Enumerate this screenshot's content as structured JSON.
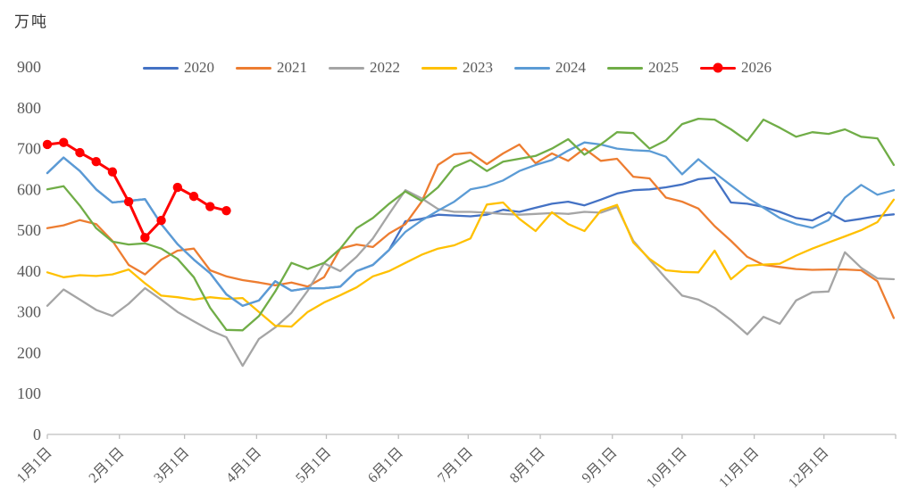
{
  "chart_data": {
    "type": "line",
    "unit_label": "万吨",
    "title": "",
    "grid": false,
    "legend_position": "top",
    "axis_color": "#bfbfbf",
    "text_color": "#595959",
    "ylim": [
      0,
      900
    ],
    "y_ticks": [
      0,
      100,
      200,
      300,
      400,
      500,
      600,
      700,
      800,
      900
    ],
    "x_tick_labels": [
      "1月1日",
      "2月1日",
      "3月1日",
      "4月1日",
      "5月1日",
      "6月1日",
      "7月1日",
      "8月1日",
      "9月1日",
      "10月1日",
      "11月1日",
      "12月1日"
    ],
    "x_tick_day_offsets": [
      0,
      31,
      59,
      90,
      120,
      151,
      181,
      212,
      243,
      273,
      304,
      334
    ],
    "points_interval_days": 7,
    "series": [
      {
        "name": "2020",
        "color": "#4472C4",
        "marker": false,
        "values": [
          640,
          678,
          645,
          600,
          568,
          572,
          576,
          515,
          466,
          428,
          395,
          343,
          315,
          328,
          375,
          352,
          358,
          358,
          362,
          400,
          415,
          452,
          522,
          528,
          538,
          536,
          534,
          538,
          550,
          545,
          555,
          565,
          570,
          561,
          575,
          590,
          598,
          600,
          605,
          612,
          625,
          629,
          568,
          565,
          557,
          545,
          530,
          524,
          544,
          522,
          528,
          535,
          539
        ]
      },
      {
        "name": "2021",
        "color": "#ED7D31",
        "marker": false,
        "values": [
          505,
          512,
          525,
          515,
          474,
          415,
          392,
          428,
          450,
          455,
          402,
          387,
          378,
          372,
          365,
          372,
          362,
          385,
          455,
          465,
          459,
          492,
          515,
          570,
          660,
          686,
          690,
          662,
          688,
          710,
          664,
          688,
          670,
          700,
          670,
          675,
          631,
          627,
          580,
          570,
          553,
          510,
          474,
          435,
          415,
          410,
          405,
          403,
          404,
          404,
          402,
          375,
          285
        ]
      },
      {
        "name": "2022",
        "color": "#A5A5A5",
        "marker": false,
        "values": [
          315,
          355,
          330,
          305,
          290,
          320,
          358,
          330,
          300,
          277,
          255,
          238,
          168,
          234,
          262,
          298,
          352,
          419,
          400,
          435,
          480,
          540,
          598,
          578,
          552,
          545,
          545,
          543,
          540,
          538,
          540,
          542,
          540,
          545,
          543,
          557,
          474,
          428,
          382,
          340,
          330,
          310,
          280,
          245,
          288,
          271,
          328,
          348,
          350,
          446,
          408,
          382,
          380
        ]
      },
      {
        "name": "2023",
        "color": "#FFC000",
        "marker": false,
        "values": [
          397,
          385,
          390,
          388,
          392,
          404,
          370,
          340,
          336,
          330,
          336,
          332,
          334,
          300,
          266,
          264,
          300,
          323,
          341,
          360,
          387,
          400,
          420,
          440,
          455,
          463,
          480,
          563,
          568,
          528,
          498,
          544,
          515,
          498,
          548,
          562,
          470,
          430,
          402,
          398,
          397,
          450,
          380,
          413,
          416,
          418,
          438,
          455,
          470,
          485,
          500,
          520,
          575
        ]
      },
      {
        "name": "2024",
        "color": "#5B9BD5",
        "marker": false,
        "values": [
          640,
          678,
          645,
          600,
          568,
          572,
          576,
          515,
          466,
          428,
          395,
          343,
          315,
          328,
          375,
          352,
          358,
          358,
          362,
          400,
          415,
          452,
          496,
          524,
          548,
          570,
          600,
          608,
          622,
          645,
          660,
          672,
          695,
          715,
          710,
          700,
          696,
          694,
          680,
          637,
          674,
          641,
          610,
          580,
          555,
          530,
          515,
          506,
          525,
          580,
          611,
          587,
          598
        ]
      },
      {
        "name": "2025",
        "color": "#70AD47",
        "marker": false,
        "values": [
          600,
          608,
          560,
          505,
          472,
          465,
          468,
          455,
          430,
          385,
          310,
          256,
          255,
          290,
          350,
          420,
          405,
          420,
          455,
          505,
          530,
          565,
          595,
          572,
          605,
          655,
          672,
          645,
          668,
          675,
          682,
          700,
          723,
          685,
          710,
          740,
          738,
          700,
          720,
          760,
          773,
          771,
          747,
          719,
          771,
          751,
          729,
          740,
          736,
          747,
          729,
          725,
          660
        ]
      },
      {
        "name": "2026",
        "color": "#FF0000",
        "marker": true,
        "values": [
          710,
          715,
          690,
          668,
          643,
          570,
          482,
          524,
          605,
          583,
          558,
          548
        ]
      }
    ]
  }
}
